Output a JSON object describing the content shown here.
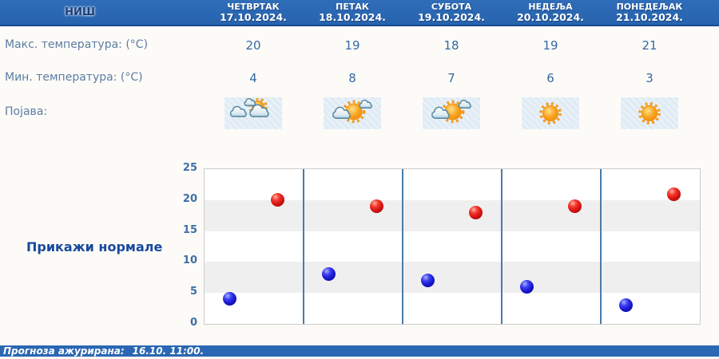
{
  "header": {
    "city": "НИШ"
  },
  "days": [
    {
      "name": "ЧЕТВРТАК",
      "date": "17.10.2024.",
      "max": "20",
      "min": "4",
      "icon": "sun-behind-clouds"
    },
    {
      "name": "ПЕТАК",
      "date": "18.10.2024.",
      "max": "19",
      "min": "8",
      "icon": "sun-with-clouds"
    },
    {
      "name": "СУБОТА",
      "date": "19.10.2024.",
      "max": "18",
      "min": "7",
      "icon": "sun-with-clouds"
    },
    {
      "name": "НЕДЕЉА",
      "date": "20.10.2024.",
      "max": "19",
      "min": "6",
      "icon": "sunny"
    },
    {
      "name": "ПОНЕДЕЉАК",
      "date": "21.10.2024.",
      "max": "21",
      "min": "3",
      "icon": "sunny"
    }
  ],
  "rows": {
    "max_label": "Макс. температура: (°C)",
    "min_label": "Мин. температура: (°C)",
    "phenomenon_label": "Појава:"
  },
  "normals_label": "Прикажи нормале",
  "footer": {
    "updated_label": "Прогноза ажурирана:",
    "updated_value": "16.10. 11:00."
  },
  "chart_data": {
    "type": "scatter",
    "categories": [
      "ЧЕТВРТАК",
      "ПЕТАК",
      "СУБОТА",
      "НЕДЕЉА",
      "ПОНЕДЕЉАК"
    ],
    "series": [
      {
        "name": "Макс. температура (°C)",
        "color": "#d91414",
        "values": [
          20,
          19,
          18,
          19,
          21
        ]
      },
      {
        "name": "Мин. температура (°C)",
        "color": "#1717cc",
        "values": [
          4,
          8,
          7,
          6,
          3
        ]
      }
    ],
    "ylim": [
      0,
      25
    ],
    "yticks": [
      0,
      5,
      10,
      15,
      20,
      25
    ],
    "grid": "shaded-bands",
    "band_color": "#efefef",
    "separator_color": "#4a7ba8",
    "legend": "none"
  },
  "colors": {
    "bar_blue": "#2b67b3",
    "max_dot_red": "#d91414",
    "min_dot_blue": "#1717cc",
    "link_blue": "#17499c",
    "label_blue": "#5d7ca3",
    "value_blue": "#36699f"
  }
}
